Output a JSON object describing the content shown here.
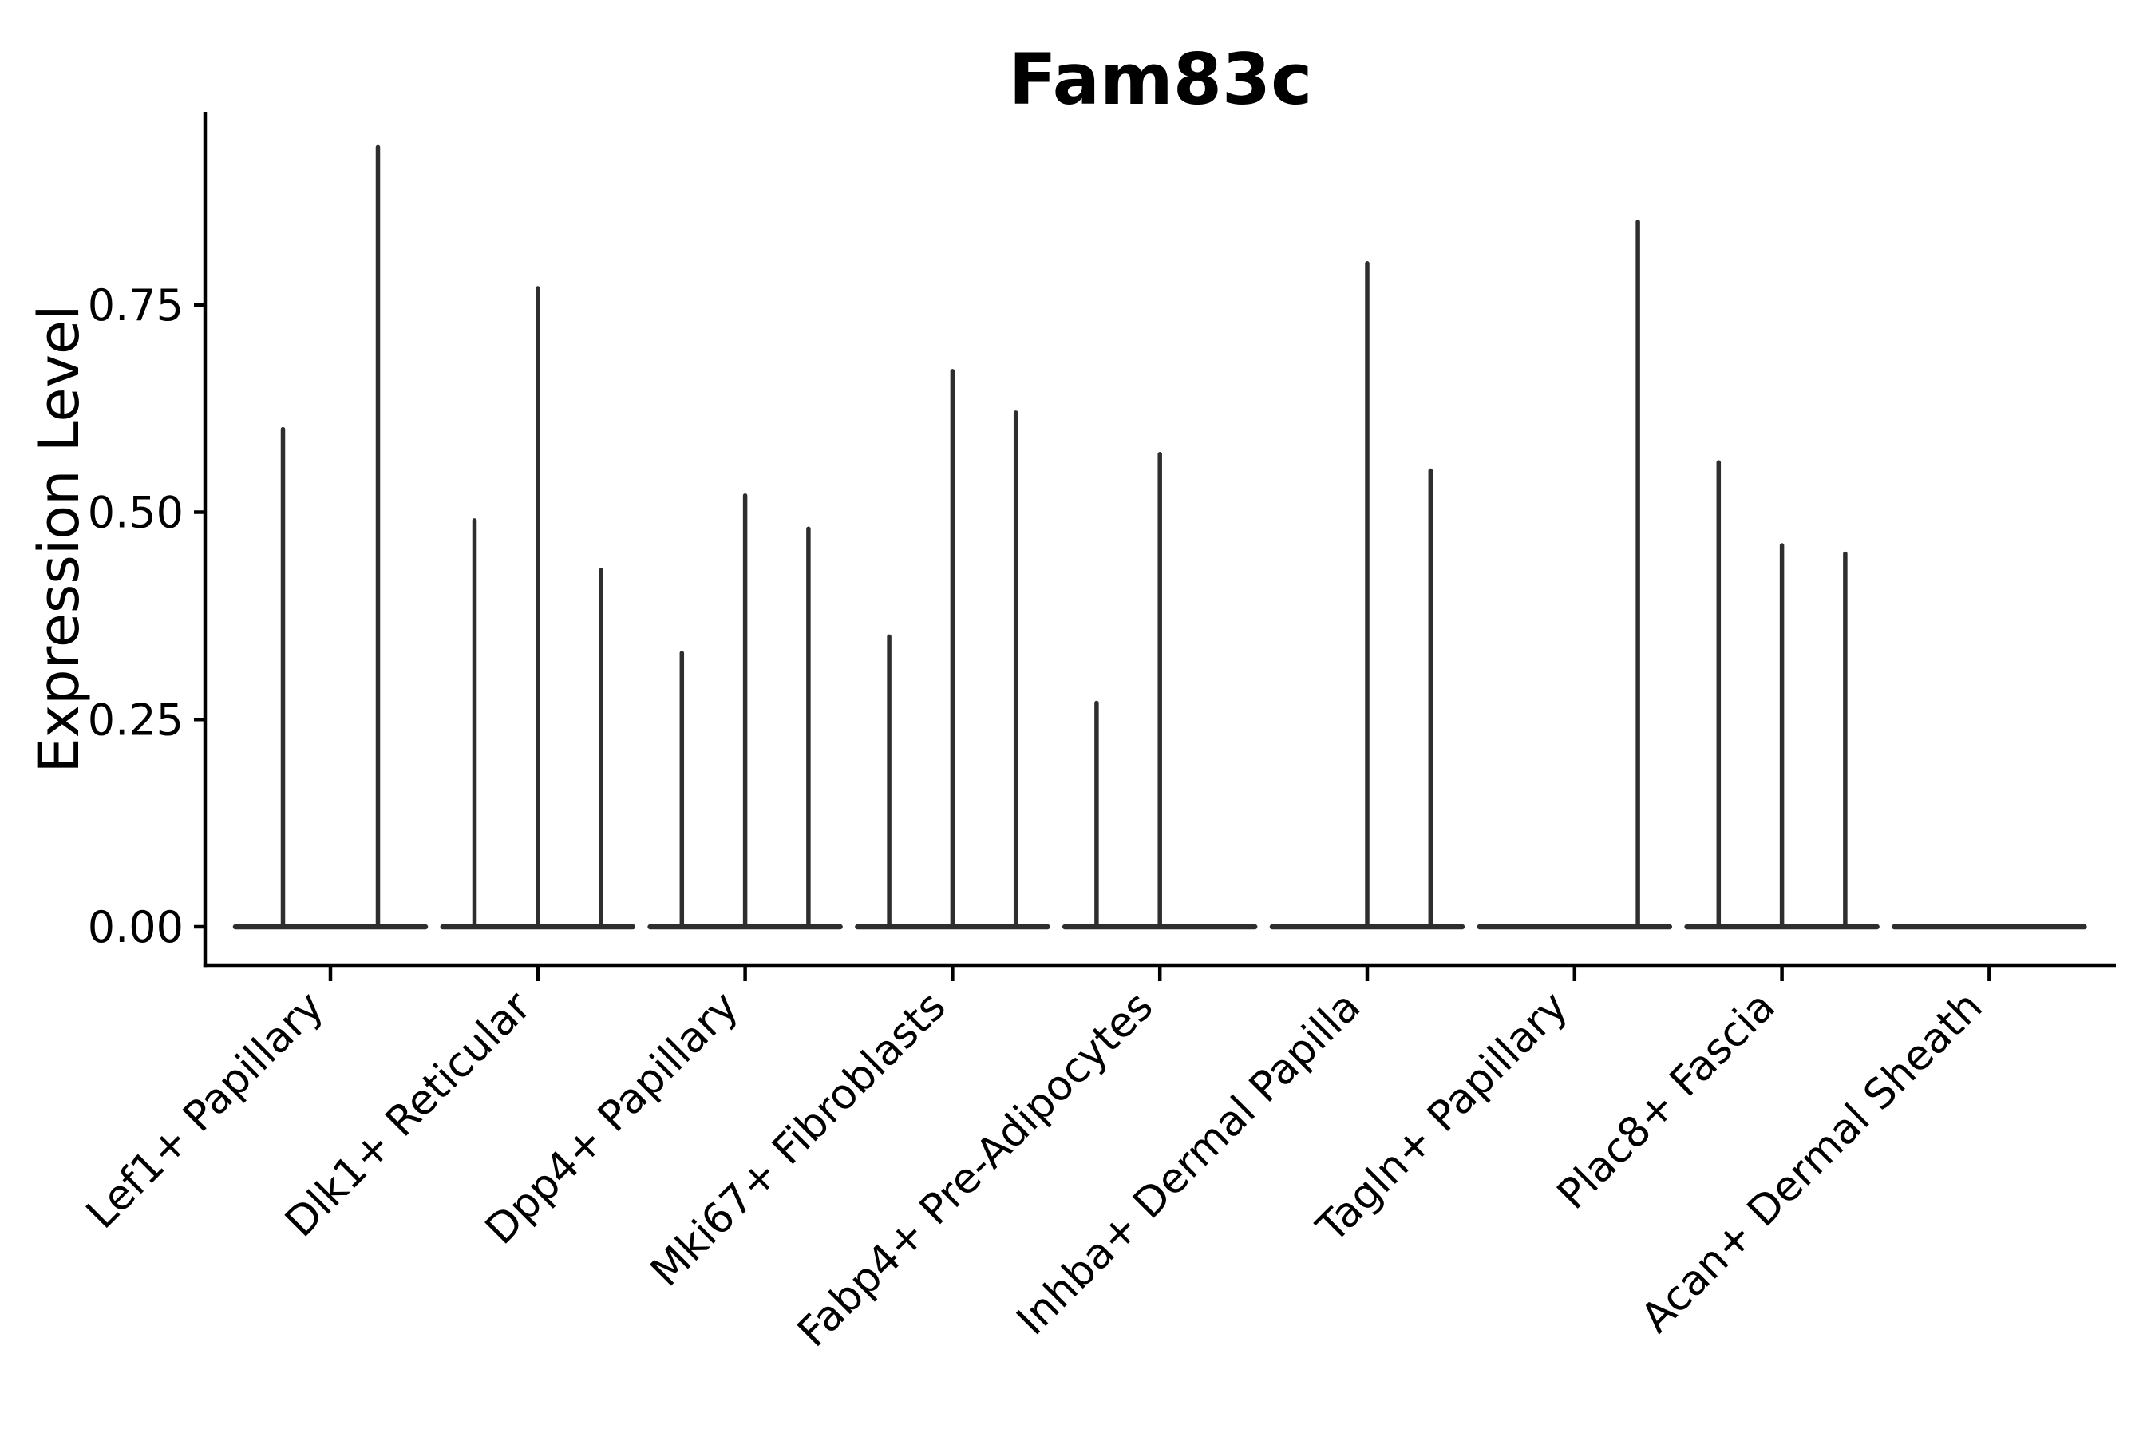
{
  "chart_data": {
    "type": "violin",
    "title": "Fam83c",
    "xlabel": "",
    "ylabel": "Expression Level",
    "ylim": [
      -0.05,
      0.98
    ],
    "yticks": [
      0.0,
      0.25,
      0.5,
      0.75
    ],
    "ytick_labels": [
      "0.00",
      "0.25",
      "0.50",
      "0.75"
    ],
    "grid": false,
    "legend_position": "none",
    "categories": [
      "Lef1+ Papillary",
      "Dlk1+ Reticular",
      "Dpp4+ Papillary",
      "Mki67+ Fibroblasts",
      "Fabp4+ Pre-Adipocytes",
      "Inhba+ Dermal Papilla",
      "Tagln+ Papillary",
      "Plac8+ Fascia",
      "Acan+ Dermal Sheath"
    ],
    "groups": [
      {
        "category": "Lef1+ Papillary",
        "violin_peaks": [
          0.6,
          0.94
        ]
      },
      {
        "category": "Dlk1+ Reticular",
        "violin_peaks": [
          0.49,
          0.77,
          0.43
        ]
      },
      {
        "category": "Dpp4+ Papillary",
        "violin_peaks": [
          0.33,
          0.52,
          0.48
        ]
      },
      {
        "category": "Mki67+ Fibroblasts",
        "violin_peaks": [
          0.35,
          0.67,
          0.62
        ]
      },
      {
        "category": "Fabp4+ Pre-Adipocytes",
        "violin_peaks": [
          0.27,
          0.57,
          0
        ]
      },
      {
        "category": "Inhba+ Dermal Papilla",
        "violin_peaks": [
          0,
          0.8,
          0.55
        ]
      },
      {
        "category": "Tagln+ Papillary",
        "violin_peaks": [
          0,
          0,
          0.85
        ]
      },
      {
        "category": "Plac8+ Fascia",
        "violin_peaks": [
          0.56,
          0.46,
          0.45
        ]
      },
      {
        "category": "Acan+ Dermal Sheath",
        "violin_peaks": [
          0,
          0,
          0
        ]
      }
    ]
  },
  "colors": {
    "background": "#ffffff",
    "axis": "#000000",
    "text": "#000000",
    "violin_stroke": "#2e2e2e"
  }
}
